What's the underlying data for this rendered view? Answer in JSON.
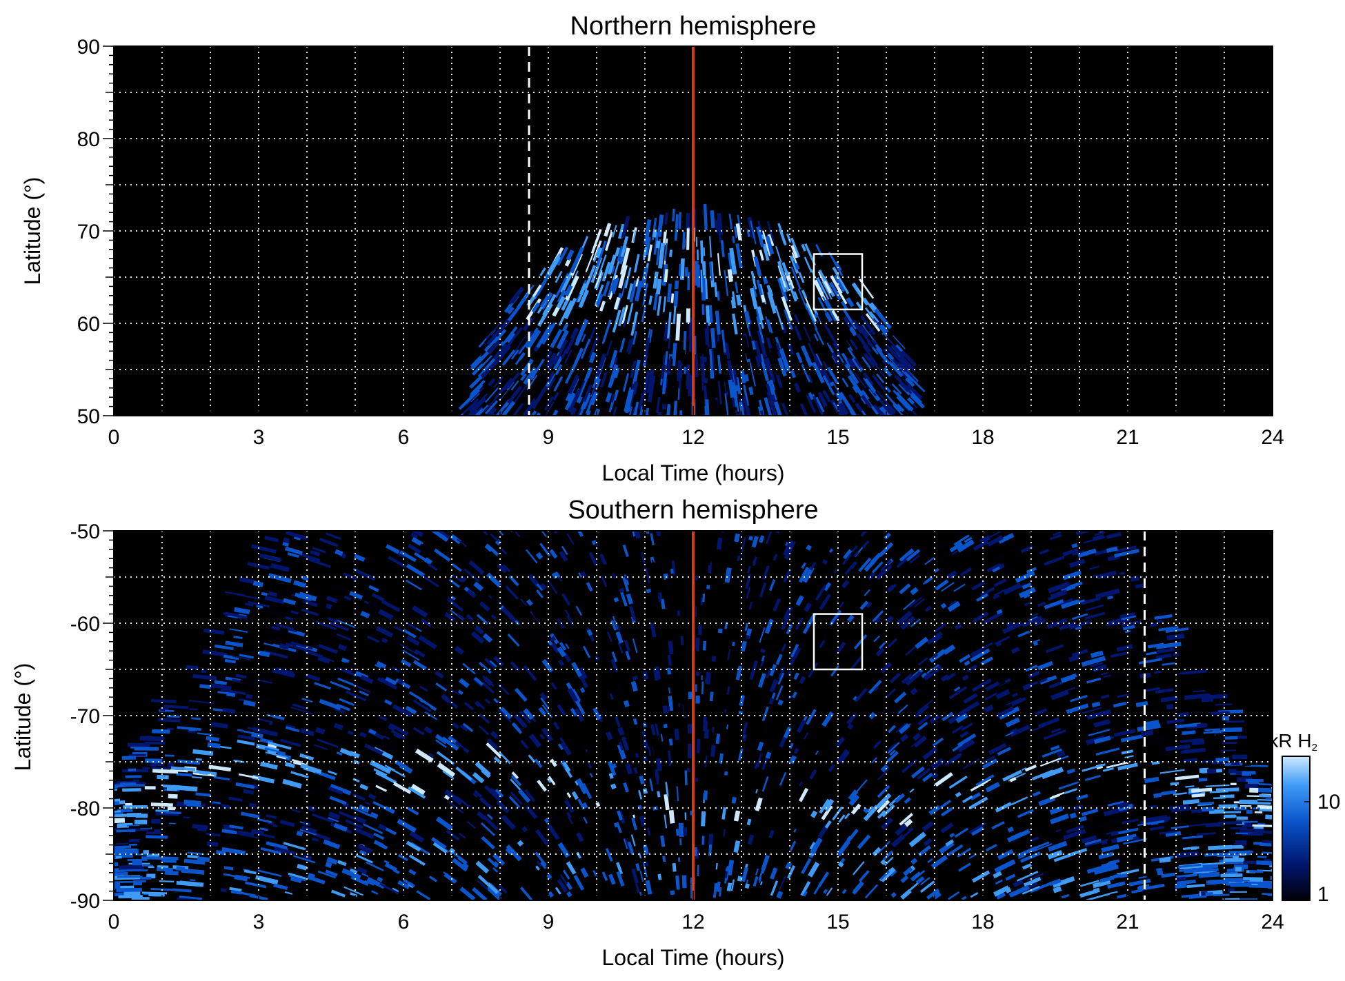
{
  "chart_data": [
    {
      "type": "heatmap",
      "title": "Northern hemisphere",
      "xlabel": "Local Time (hours)",
      "ylabel": "Latitude (°)",
      "xlim": [
        0,
        24
      ],
      "ylim": [
        50,
        90
      ],
      "xticks": [
        0,
        3,
        6,
        9,
        12,
        15,
        18,
        21,
        24
      ],
      "yticks": [
        50,
        60,
        70,
        80,
        90
      ],
      "grid": true,
      "background": "#000000",
      "noon_line": {
        "local_time": 12,
        "color": "#d13b16"
      },
      "terminator_dashed": [
        8.6
      ],
      "highlight_box": {
        "lt": [
          14.5,
          15.5
        ],
        "lat": [
          61.5,
          67.5
        ]
      },
      "emission_region": {
        "lt_center": 12.0,
        "lt_halfwidth_at_50": 4.5,
        "lat_max": 73
      },
      "auroral_oval": {
        "lt": [
          8.5,
          16.0
        ],
        "lat": [
          62,
          68
        ]
      }
    },
    {
      "type": "heatmap",
      "title": "Southern hemisphere",
      "xlabel": "Local Time (hours)",
      "ylabel": "Latitude (°)",
      "xlim": [
        0,
        24
      ],
      "ylim": [
        -90,
        -50
      ],
      "xticks": [
        0,
        3,
        6,
        9,
        12,
        15,
        18,
        21,
        24
      ],
      "yticks": [
        -90,
        -80,
        -70,
        -60,
        -50
      ],
      "grid": true,
      "background": "#000000",
      "noon_line": {
        "local_time": 12,
        "color": "#d13b16"
      },
      "terminator_dashed": [
        21.35
      ],
      "highlight_box": {
        "lt": [
          14.5,
          15.5
        ],
        "lat": [
          -65,
          -59
        ]
      },
      "auroral_oval": [
        {
          "lt": 0.5,
          "lat": -80
        },
        {
          "lt": 2.5,
          "lat": -75
        },
        {
          "lt": 4.5,
          "lat": -76
        },
        {
          "lt": 6.5,
          "lat": -77
        },
        {
          "lt": 8.5,
          "lat": -76
        },
        {
          "lt": 10.5,
          "lat": -79
        },
        {
          "lt": 12.0,
          "lat": -81
        },
        {
          "lt": 13.5,
          "lat": -80
        },
        {
          "lt": 16.0,
          "lat": -80
        },
        {
          "lt": 17.5,
          "lat": -79
        },
        {
          "lt": 19.5,
          "lat": -77
        },
        {
          "lt": 21.0,
          "lat": -75
        },
        {
          "lt": 23.5,
          "lat": -80
        }
      ]
    }
  ],
  "colorbar": {
    "label": "kR H",
    "label_sub": "2",
    "scale": "log",
    "range": [
      1,
      30
    ],
    "ticks": [
      "1",
      "10"
    ],
    "colors": [
      "#000008",
      "#00166e",
      "#0a55cc",
      "#3f9bf5",
      "#cfeaff"
    ]
  }
}
